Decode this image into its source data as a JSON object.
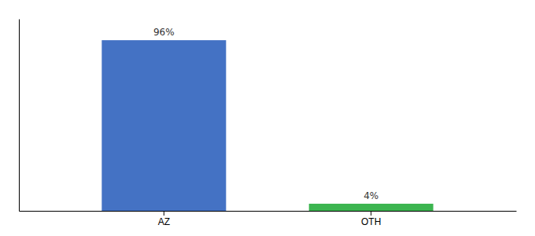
{
  "chart_data": {
    "type": "bar",
    "categories": [
      "AZ",
      "OTH"
    ],
    "values": [
      96,
      4
    ],
    "value_labels": [
      "96%",
      "4%"
    ],
    "colors": [
      "#4472c4",
      "#3cb550"
    ],
    "ylim": [
      0,
      108
    ],
    "data_labels": true,
    "tick_labels": "x"
  }
}
